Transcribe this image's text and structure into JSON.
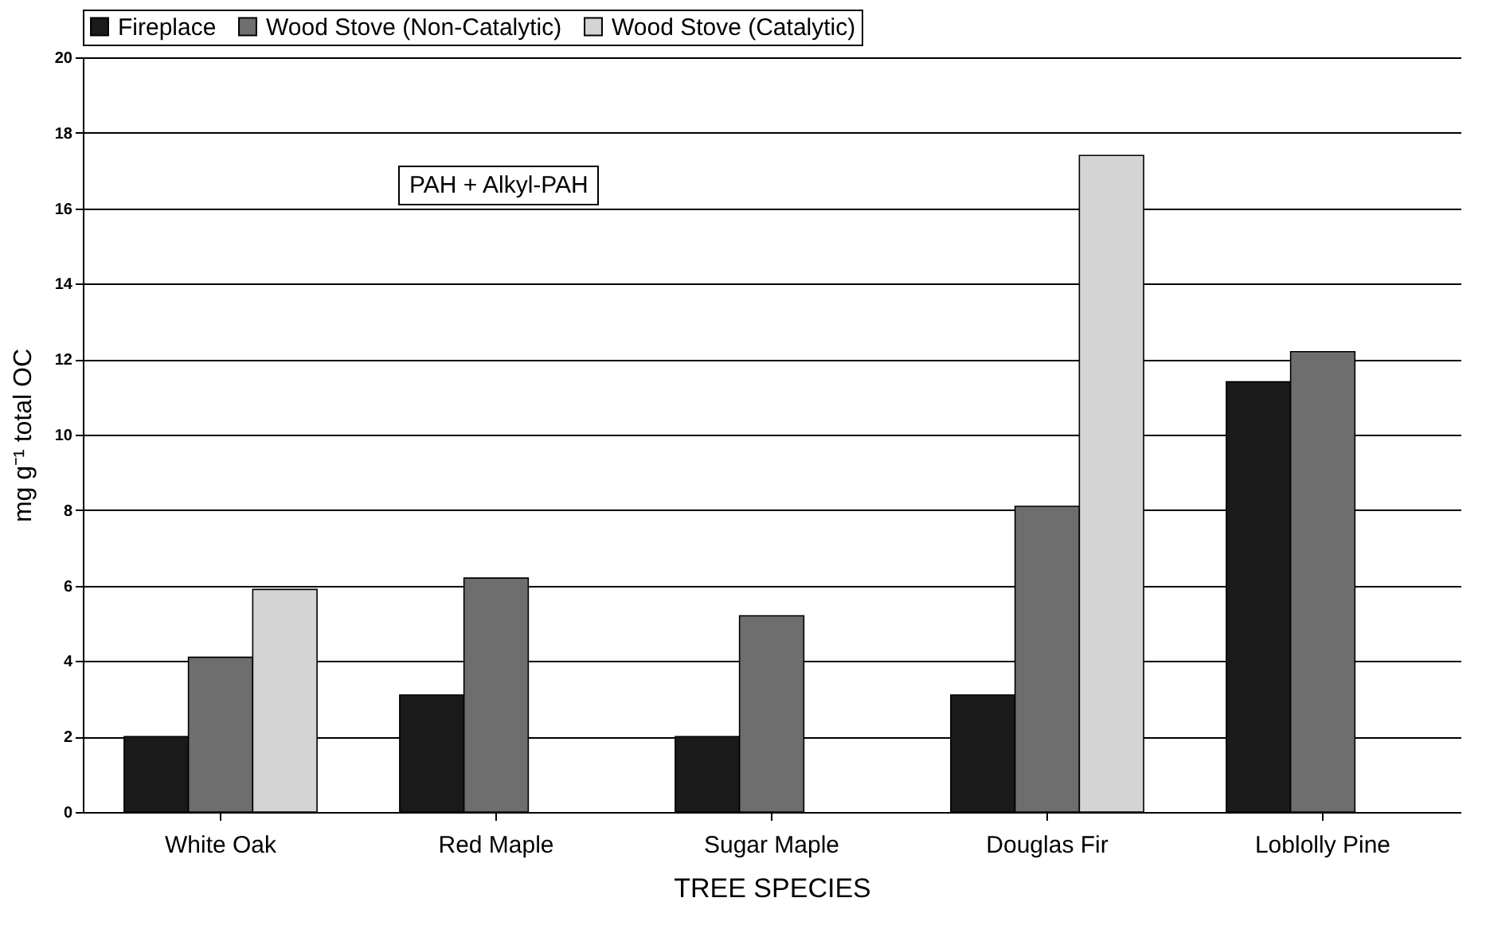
{
  "chart_data": {
    "type": "bar",
    "xlabel": "TREE SPECIES",
    "ylabel": "mg g⁻¹ total OC",
    "annotations": [
      "PAH + Alkyl-PAH"
    ],
    "categories": [
      "White Oak",
      "Red Maple",
      "Sugar Maple",
      "Douglas Fir",
      "Loblolly Pine"
    ],
    "series": [
      {
        "name": "Fireplace",
        "color": "#1a1a1a",
        "values": [
          2.0,
          3.1,
          2.0,
          3.1,
          11.4
        ]
      },
      {
        "name": "Wood Stove (Non-Catalytic)",
        "color": "#6e6e6e",
        "values": [
          4.1,
          6.2,
          5.2,
          8.1,
          12.2
        ]
      },
      {
        "name": "Wood Stove (Catalytic)",
        "color": "#d4d4d4",
        "values": [
          5.9,
          null,
          null,
          17.4,
          null
        ]
      }
    ],
    "ylim": [
      0,
      20
    ],
    "yticks": [
      0,
      2,
      4,
      6,
      8,
      10,
      12,
      14,
      16,
      18,
      20
    ],
    "grid": "y",
    "legend": "top"
  }
}
